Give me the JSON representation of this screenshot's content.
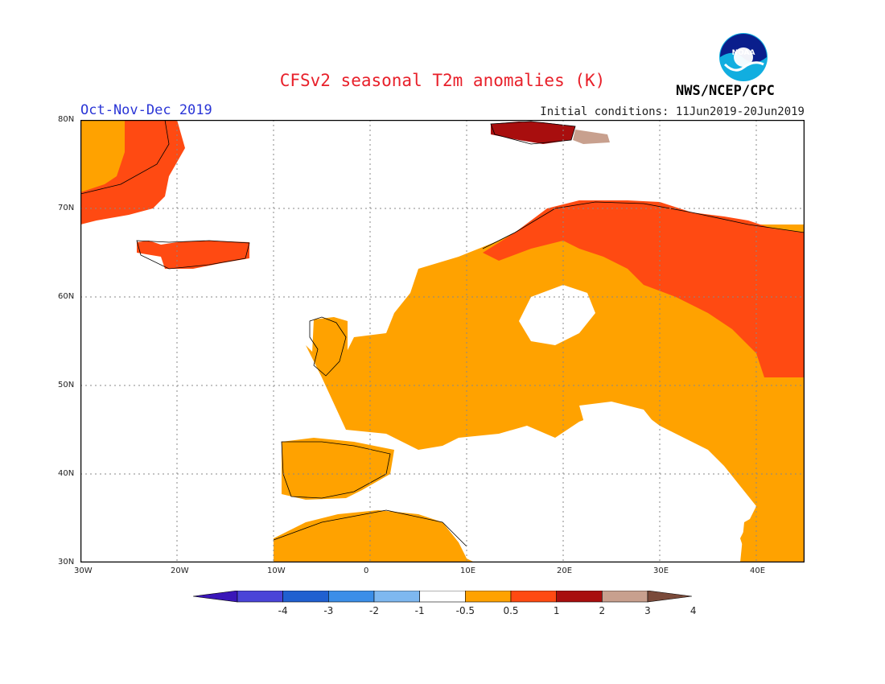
{
  "header": {
    "title": "CFSv2 seasonal T2m anomalies (K)",
    "season": "Oct-Nov-Dec 2019",
    "initial_conditions": "Initial conditions: 11Jun2019-20Jun2019",
    "agency": "NWS/NCEP/CPC",
    "logo_text": "NOAA"
  },
  "map": {
    "lon_range": [
      -30,
      45
    ],
    "lat_range": [
      30,
      80
    ],
    "lon_ticks": [
      "30W",
      "20W",
      "10W",
      "0",
      "10E",
      "20E",
      "30E",
      "40E"
    ],
    "lat_ticks": [
      "80N",
      "70N",
      "60N",
      "50N",
      "40N",
      "30N"
    ],
    "gridlines": "dotted"
  },
  "colorbar": {
    "labels": [
      "-4",
      "-3",
      "-2",
      "-1",
      "-0.5",
      "0.5",
      "1",
      "2",
      "3",
      "4"
    ],
    "colors": [
      "#3a16b8",
      "#4a44d8",
      "#2060d0",
      "#3b8ee8",
      "#7eb8f0",
      "#ffffff",
      "#ffa200",
      "#ff4a12",
      "#a80e0e",
      "#c8a08e",
      "#7a4a3a"
    ]
  },
  "anomaly_regions": [
    {
      "name": "Greenland east coast",
      "category": "1-2 K",
      "color": "#ff4a12"
    },
    {
      "name": "Greenland east coast inner",
      "category": "0.5-1 K",
      "color": "#ffa200"
    },
    {
      "name": "Iceland",
      "category": "1-2 K",
      "color": "#ff4a12"
    },
    {
      "name": "Svalbard",
      "category": "2-3 K",
      "color": "#a80e0e"
    },
    {
      "name": "Svalbard east",
      "category": "3-4 K",
      "color": "#c8a08e"
    },
    {
      "name": "Northern Scandinavia and NW Russia",
      "category": "1-2 K",
      "color": "#ff4a12"
    },
    {
      "name": "Central and Eastern Europe",
      "category": "0.5-1 K",
      "color": "#ffa200"
    },
    {
      "name": "Iberia and North Africa",
      "category": "0.5-1 K",
      "color": "#ffa200"
    },
    {
      "name": "Mediterranean and Balkans",
      "category": "-0.5-0.5 K",
      "color": "#ffffff"
    }
  ]
}
